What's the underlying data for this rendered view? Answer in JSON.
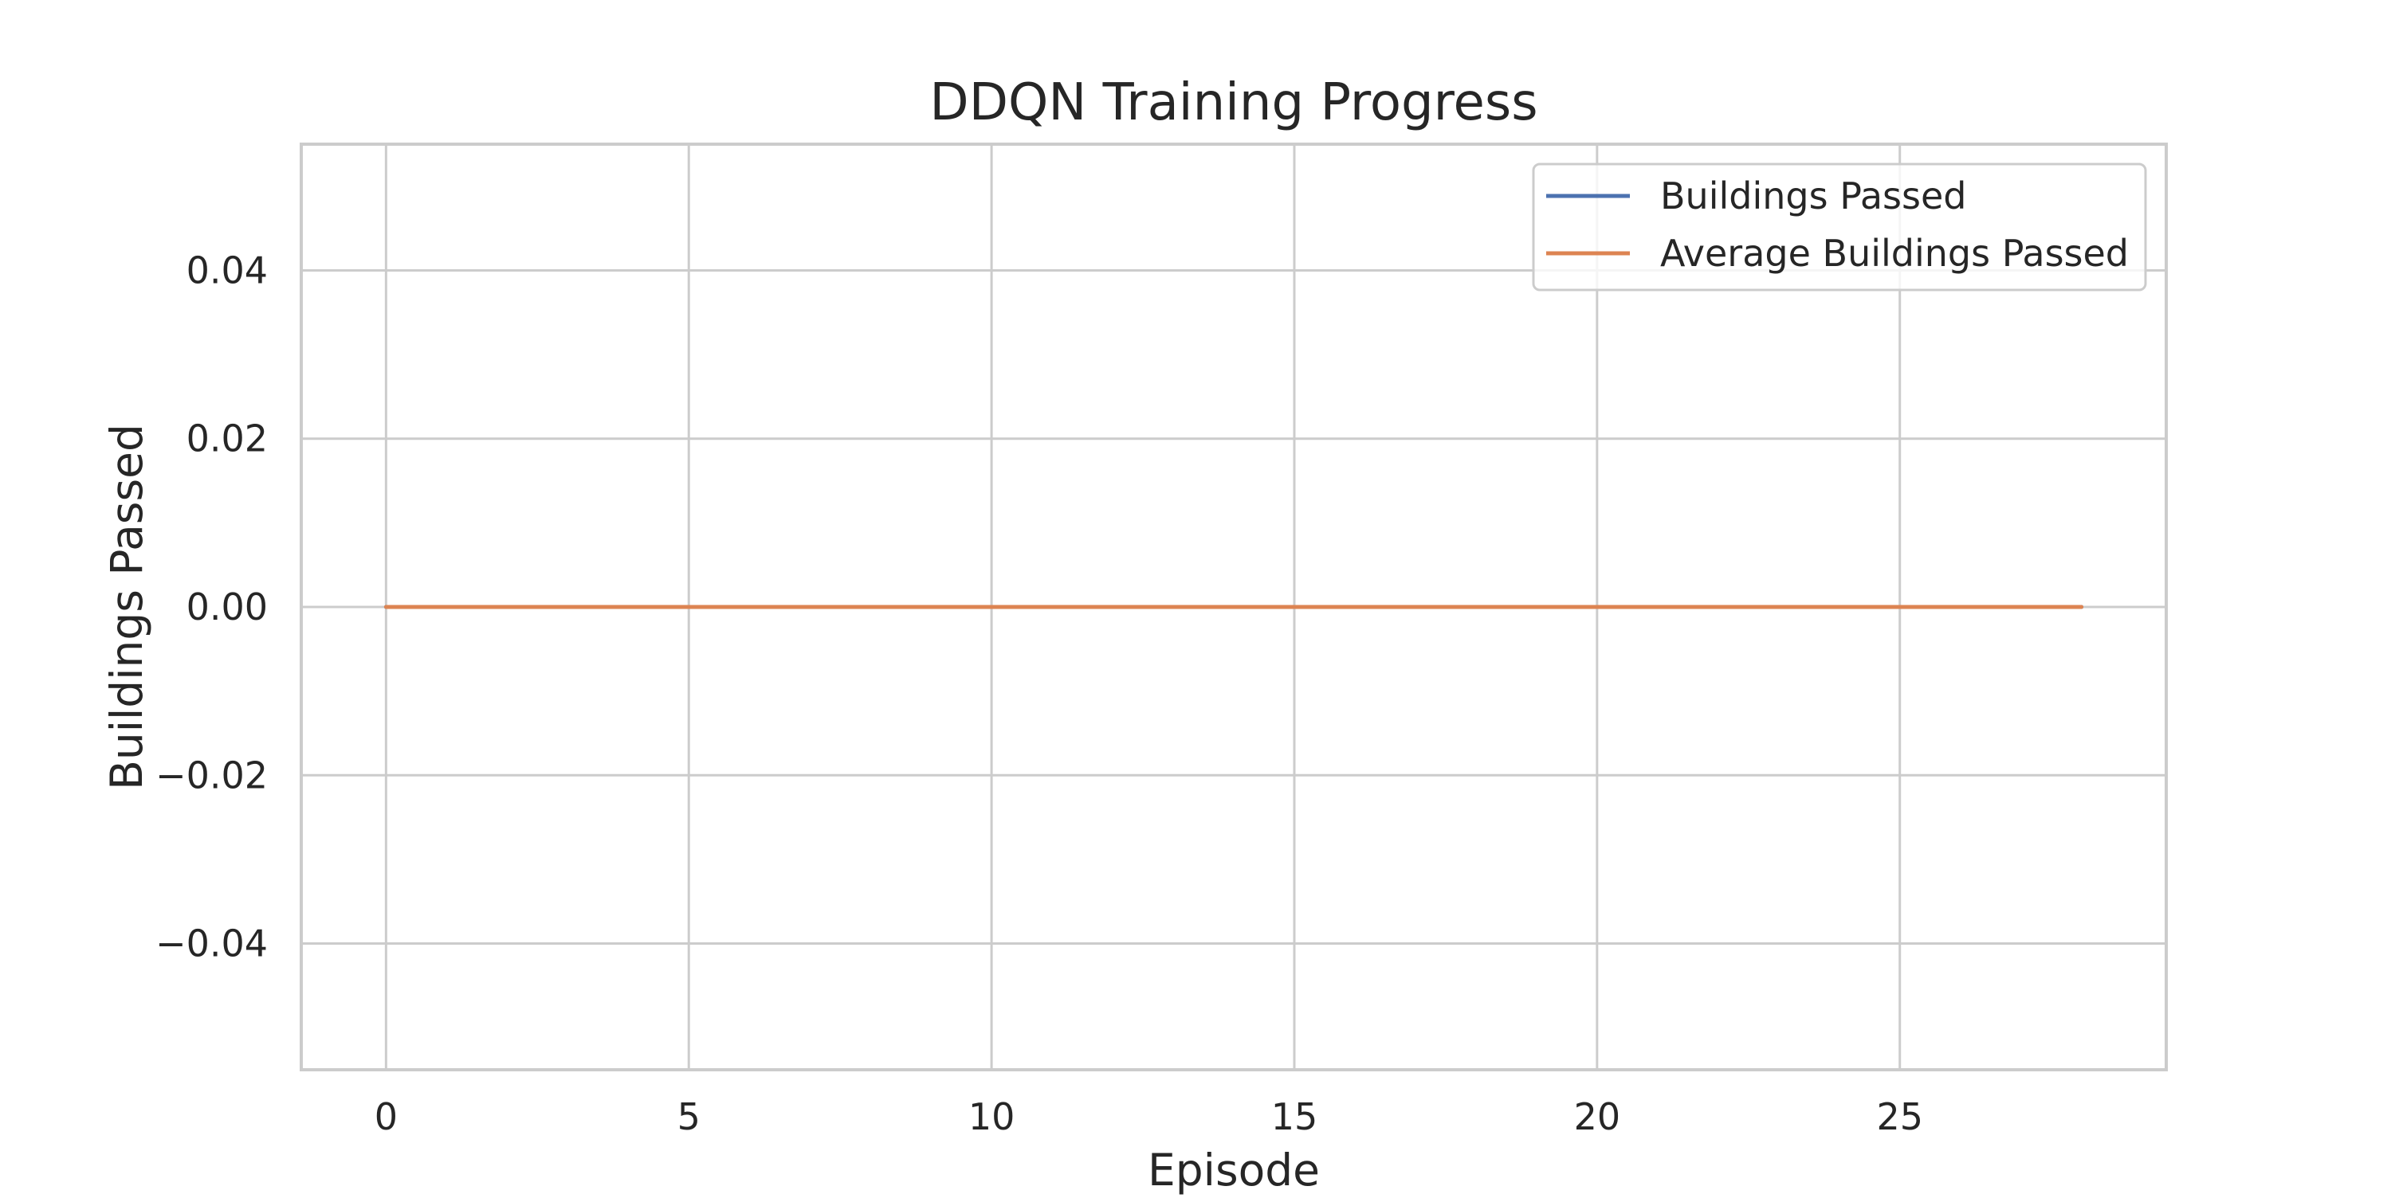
{
  "chart_data": {
    "type": "line",
    "title": "DDQN Training Progress",
    "xlabel": "Episode",
    "ylabel": "Buildings Passed",
    "xlim": [
      -1.4,
      29.4
    ],
    "ylim": [
      -0.055,
      0.055
    ],
    "x_ticks": [
      0,
      5,
      10,
      15,
      20,
      25
    ],
    "x_tick_labels": [
      "0",
      "5",
      "10",
      "15",
      "20",
      "25"
    ],
    "y_ticks": [
      0.04,
      0.02,
      0.0,
      -0.02,
      -0.04
    ],
    "y_tick_labels": [
      "0.04",
      "0.02",
      "0.00",
      "−0.02",
      "−0.04"
    ],
    "grid": true,
    "legend_position": "top-right",
    "x": [
      0,
      1,
      2,
      3,
      4,
      5,
      6,
      7,
      8,
      9,
      10,
      11,
      12,
      13,
      14,
      15,
      16,
      17,
      18,
      19,
      20,
      21,
      22,
      23,
      24,
      25,
      26,
      27,
      28
    ],
    "series": [
      {
        "name": "Buildings Passed",
        "color": "#4c72b0",
        "values": [
          0,
          0,
          0,
          0,
          0,
          0,
          0,
          0,
          0,
          0,
          0,
          0,
          0,
          0,
          0,
          0,
          0,
          0,
          0,
          0,
          0,
          0,
          0,
          0,
          0,
          0,
          0,
          0,
          0
        ]
      },
      {
        "name": "Average Buildings Passed",
        "color": "#dd8452",
        "values": [
          0,
          0,
          0,
          0,
          0,
          0,
          0,
          0,
          0,
          0,
          0,
          0,
          0,
          0,
          0,
          0,
          0,
          0,
          0,
          0,
          0,
          0,
          0,
          0,
          0,
          0,
          0,
          0,
          0
        ]
      }
    ]
  }
}
